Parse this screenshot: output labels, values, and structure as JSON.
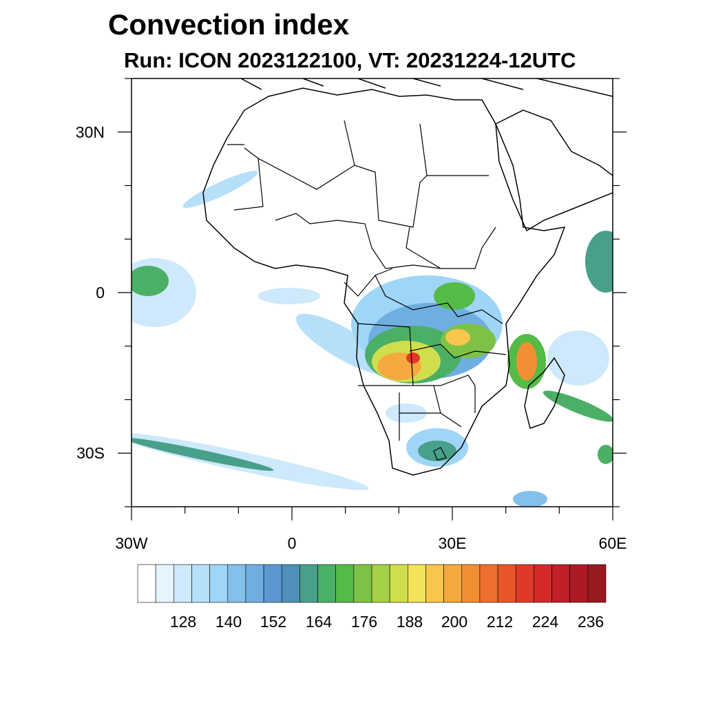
{
  "title": "Convection index",
  "subtitle": "Run: ICON 2023122100,  VT: 20231224-12UTC",
  "map": {
    "lon_range": [
      -30,
      60
    ],
    "lat_range": [
      -40,
      40
    ],
    "lat_ticks": [
      {
        "value": 30,
        "label": "30N"
      },
      {
        "value": 0,
        "label": "0"
      },
      {
        "value": -30,
        "label": "30S"
      }
    ],
    "lon_ticks": [
      {
        "value": -30,
        "label": "30W"
      },
      {
        "value": 0,
        "label": "0"
      },
      {
        "value": 30,
        "label": "30E"
      },
      {
        "value": 60,
        "label": "60E"
      }
    ],
    "border_color": "#000000"
  },
  "colorbar": {
    "colors": [
      "#ffffff",
      "#e6f4fd",
      "#cde9fb",
      "#b6e0fa",
      "#9fd5f6",
      "#83c0ea",
      "#6faee1",
      "#5b98d3",
      "#4f8fb8",
      "#48a08a",
      "#4caf66",
      "#54bb46",
      "#7dc246",
      "#a6cf48",
      "#d0de4d",
      "#f2e35a",
      "#f8c64c",
      "#f5a93e",
      "#f28f34",
      "#ee6f2d",
      "#e7552a",
      "#df3a28",
      "#d32a29",
      "#c02028",
      "#ac1b24",
      "#961a1e"
    ],
    "labels": [
      "128",
      "140",
      "152",
      "164",
      "176",
      "188",
      "200",
      "212",
      "224",
      "236"
    ]
  }
}
